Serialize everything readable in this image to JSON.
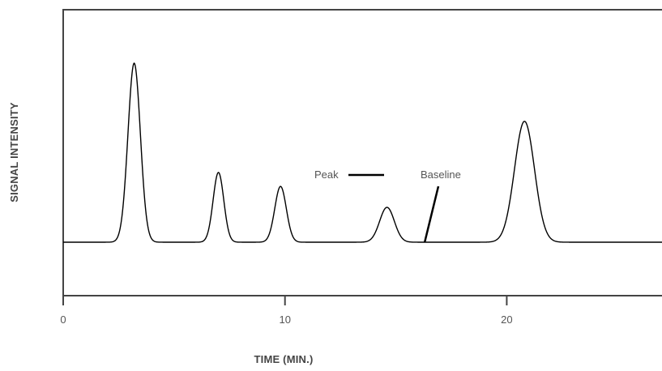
{
  "chart_data": {
    "type": "line",
    "title": "",
    "xlabel": "TIME (MIN.)",
    "ylabel": "SIGNAL INTENSITY",
    "xlim": [
      0,
      27
    ],
    "ylim": [
      0,
      1.23
    ],
    "x_ticks": [
      0,
      10,
      20
    ],
    "x_tick_labels": [
      "0",
      "10",
      "20"
    ],
    "grid": false,
    "legend": "none",
    "baseline": 0.23,
    "peaks": [
      {
        "x": 3.2,
        "height": 1.0,
        "width": 0.28
      },
      {
        "x": 7.0,
        "height": 0.53,
        "width": 0.24
      },
      {
        "x": 9.8,
        "height": 0.47,
        "width": 0.26
      },
      {
        "x": 14.6,
        "height": 0.38,
        "width": 0.33
      },
      {
        "x": 20.8,
        "height": 0.75,
        "width": 0.45
      }
    ],
    "annotations": [
      {
        "text": "Peak",
        "points_to": {
          "x": 14.4,
          "y": 0.6
        }
      },
      {
        "text": "Baseline",
        "points_to": {
          "x": 16.3,
          "y": 0.23
        }
      }
    ],
    "colors": {
      "line": "#000000",
      "frame": "#444444",
      "text": "#555555"
    }
  }
}
